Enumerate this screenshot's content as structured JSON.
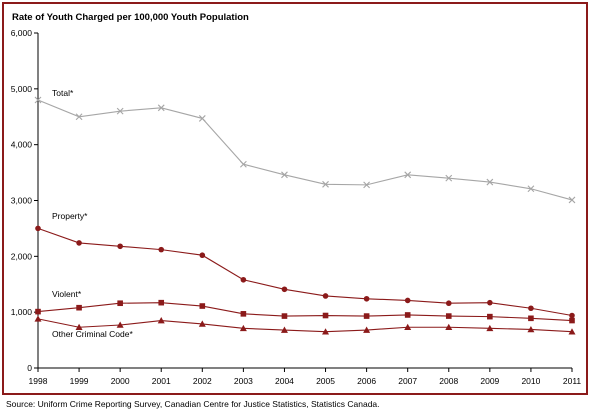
{
  "chart_data": {
    "type": "line",
    "title": "Rate of Youth Charged per 100,000 Youth Population",
    "xlabel": "",
    "ylabel": "",
    "x": [
      "1998",
      "1999",
      "2000",
      "2001",
      "2002",
      "2003",
      "2004",
      "2005",
      "2006",
      "2007",
      "2008",
      "2009",
      "2010",
      "2011"
    ],
    "ylim": [
      0,
      6000
    ],
    "yticks": [
      0,
      1000,
      2000,
      3000,
      4000,
      5000,
      6000
    ],
    "ytick_labels": [
      "0",
      "1,000",
      "2,000",
      "3,000",
      "4,000",
      "5,000",
      "6,000"
    ],
    "grid": false,
    "series": [
      {
        "name": "Total*",
        "marker": "x",
        "color": "#a6a6a6",
        "values": [
          4800,
          4500,
          4600,
          4660,
          4470,
          3650,
          3460,
          3290,
          3280,
          3460,
          3400,
          3330,
          3210,
          3010
        ]
      },
      {
        "name": "Property*",
        "marker": "circle",
        "color": "#8b1a1a",
        "values": [
          2500,
          2240,
          2180,
          2120,
          2020,
          1580,
          1410,
          1290,
          1240,
          1210,
          1160,
          1170,
          1070,
          940
        ]
      },
      {
        "name": "Violent*",
        "marker": "square",
        "color": "#8b1a1a",
        "values": [
          1010,
          1080,
          1160,
          1170,
          1110,
          970,
          930,
          940,
          930,
          950,
          930,
          920,
          890,
          850
        ]
      },
      {
        "name": "Other Criminal Code*",
        "marker": "triangle",
        "color": "#8b1a1a",
        "values": [
          880,
          730,
          770,
          850,
          790,
          710,
          680,
          650,
          680,
          730,
          730,
          710,
          690,
          650
        ]
      }
    ]
  },
  "source": "Source:  Uniform Crime Reporting Survey, Canadian Centre for Justice Statistics, Statistics Canada."
}
